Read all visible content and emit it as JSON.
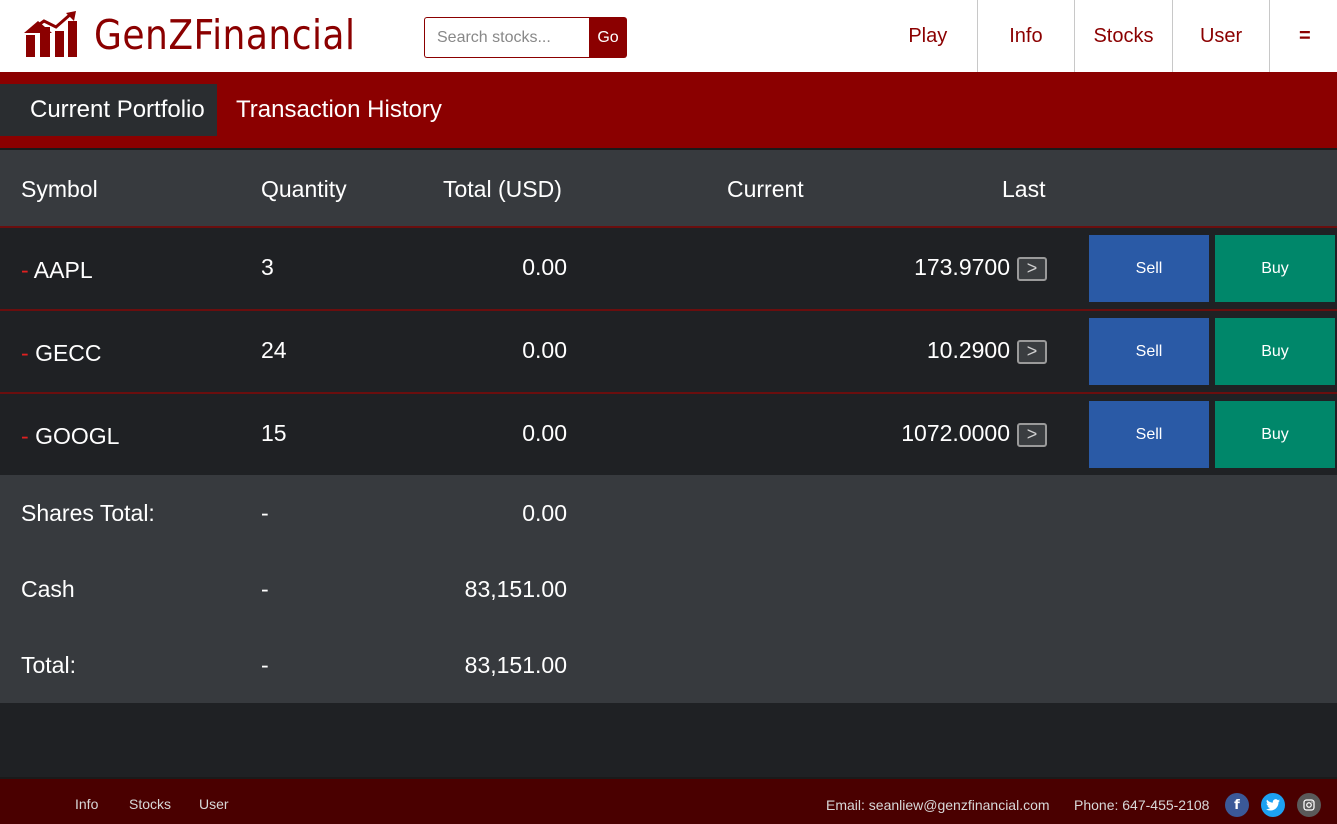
{
  "header": {
    "logo_text": "GenZFinancial",
    "search_placeholder": "Search stocks...",
    "search_button": "Go",
    "nav": [
      "Play",
      "Info",
      "Stocks",
      "User",
      "="
    ]
  },
  "subnav": {
    "tabs": [
      "Current Portfolio",
      "Transaction History"
    ],
    "active": "Current Portfolio"
  },
  "table": {
    "headers": {
      "symbol": "Symbol",
      "quantity": "Quantity",
      "total": "Total (USD)",
      "current": "Current",
      "last": "Last"
    },
    "rows": [
      {
        "dash": "-",
        "symbol": "AAPL",
        "quantity": "3",
        "total": "0.00",
        "last": "173.9700",
        "arrow": ">",
        "sell": "Sell",
        "buy": "Buy"
      },
      {
        "dash": "-",
        "symbol": "GECC",
        "quantity": "24",
        "total": "0.00",
        "last": "10.2900",
        "arrow": ">",
        "sell": "Sell",
        "buy": "Buy"
      },
      {
        "dash": "-",
        "symbol": "GOOGL",
        "quantity": "15",
        "total": "0.00",
        "last": "1072.0000",
        "arrow": ">",
        "sell": "Sell",
        "buy": "Buy"
      }
    ],
    "summary": [
      {
        "label": "Shares Total:",
        "quantity": "-",
        "total": "0.00"
      },
      {
        "label": "Cash",
        "quantity": "-",
        "total": "83,151.00"
      },
      {
        "label": "Total:",
        "quantity": "-",
        "total": "83,151.00"
      }
    ]
  },
  "footer": {
    "links": [
      "Info",
      "Stocks",
      "User"
    ],
    "email": "Email: seanliew@genzfinancial.com",
    "phone": "Phone: 647-455-2108",
    "social": [
      {
        "name": "facebook-icon",
        "glyph": "f",
        "color": "#3b5998"
      },
      {
        "name": "twitter-icon",
        "glyph": "t",
        "color": "#1da1f2"
      },
      {
        "name": "instagram-icon",
        "glyph": "◘",
        "color": "#5a5a5a"
      }
    ]
  },
  "colors": {
    "brand": "#8b0000",
    "sell": "#2a5aa6",
    "buy": "#00876a",
    "dash": "#e02020"
  }
}
